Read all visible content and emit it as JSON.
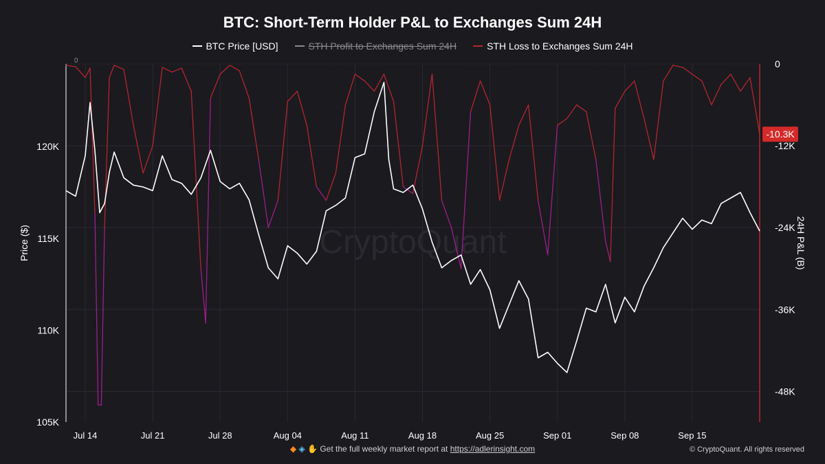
{
  "chart_data": {
    "type": "line",
    "title": "BTC: Short-Term Holder P&L to Exchanges Sum 24H",
    "y_left_label": "Price ($)",
    "y_right_label": "24H P&L (B)",
    "y_left_ticks": [
      "105K",
      "110K",
      "115K",
      "120K"
    ],
    "y_left_range": [
      105000,
      124500
    ],
    "y_right_ticks": [
      "0",
      "-12K",
      "-24K",
      "-36K",
      "-48K"
    ],
    "y_right_range": [
      -52500,
      0
    ],
    "x_ticks": [
      "Jul 14",
      "Jul 21",
      "Jul 28",
      "Aug 04",
      "Aug 11",
      "Aug 18",
      "Aug 25",
      "Sep 01",
      "Sep 08",
      "Sep 15"
    ],
    "x_start": "2025-07-12",
    "x_end": "2025-09-22",
    "left_zero_label": "0",
    "last_value_badge": "-10.3K",
    "watermark": "CryptoQuant",
    "series": [
      {
        "name": "BTC Price [USD]",
        "color": "#ffffff",
        "visible": true,
        "points": [
          [
            "2025-07-12",
            117600
          ],
          [
            "2025-07-13",
            117300
          ],
          [
            "2025-07-14",
            119500
          ],
          [
            "2025-07-14 12:00",
            122400
          ],
          [
            "2025-07-15",
            119800
          ],
          [
            "2025-07-15 12:00",
            116400
          ],
          [
            "2025-07-16",
            116900
          ],
          [
            "2025-07-16 12:00",
            118600
          ],
          [
            "2025-07-17",
            119700
          ],
          [
            "2025-07-18",
            118300
          ],
          [
            "2025-07-19",
            117900
          ],
          [
            "2025-07-20",
            117800
          ],
          [
            "2025-07-21",
            117600
          ],
          [
            "2025-07-22",
            119500
          ],
          [
            "2025-07-23",
            118200
          ],
          [
            "2025-07-24",
            118000
          ],
          [
            "2025-07-25",
            117400
          ],
          [
            "2025-07-26",
            118300
          ],
          [
            "2025-07-27",
            119800
          ],
          [
            "2025-07-28",
            118100
          ],
          [
            "2025-07-29",
            117700
          ],
          [
            "2025-07-30",
            118000
          ],
          [
            "2025-07-31",
            117100
          ],
          [
            "2025-08-01",
            115200
          ],
          [
            "2025-08-02",
            113400
          ],
          [
            "2025-08-03",
            112800
          ],
          [
            "2025-08-04",
            114600
          ],
          [
            "2025-08-05",
            114200
          ],
          [
            "2025-08-06",
            113600
          ],
          [
            "2025-08-07",
            114300
          ],
          [
            "2025-08-08",
            116500
          ],
          [
            "2025-08-09",
            116800
          ],
          [
            "2025-08-10",
            117200
          ],
          [
            "2025-08-11",
            119400
          ],
          [
            "2025-08-12",
            119600
          ],
          [
            "2025-08-13",
            121900
          ],
          [
            "2025-08-14",
            123500
          ],
          [
            "2025-08-14 12:00",
            119300
          ],
          [
            "2025-08-15",
            117700
          ],
          [
            "2025-08-16",
            117500
          ],
          [
            "2025-08-17",
            117900
          ],
          [
            "2025-08-18",
            116600
          ],
          [
            "2025-08-19",
            114800
          ],
          [
            "2025-08-20",
            113400
          ],
          [
            "2025-08-21",
            113800
          ],
          [
            "2025-08-22",
            114100
          ],
          [
            "2025-08-23",
            112500
          ],
          [
            "2025-08-24",
            113300
          ],
          [
            "2025-08-25",
            112200
          ],
          [
            "2025-08-26",
            110100
          ],
          [
            "2025-08-27",
            111400
          ],
          [
            "2025-08-28",
            112700
          ],
          [
            "2025-08-29",
            111700
          ],
          [
            "2025-08-30",
            108500
          ],
          [
            "2025-08-31",
            108800
          ],
          [
            "2025-09-01",
            108200
          ],
          [
            "2025-09-02",
            107700
          ],
          [
            "2025-09-03",
            109400
          ],
          [
            "2025-09-04",
            111200
          ],
          [
            "2025-09-05",
            111000
          ],
          [
            "2025-09-06",
            112500
          ],
          [
            "2025-09-07",
            110400
          ],
          [
            "2025-09-08",
            111800
          ],
          [
            "2025-09-09",
            111000
          ],
          [
            "2025-09-10",
            112400
          ],
          [
            "2025-09-11",
            113400
          ],
          [
            "2025-09-12",
            114500
          ],
          [
            "2025-09-13",
            115300
          ],
          [
            "2025-09-14",
            116100
          ],
          [
            "2025-09-15",
            115500
          ],
          [
            "2025-09-16",
            116000
          ],
          [
            "2025-09-17",
            115800
          ],
          [
            "2025-09-18",
            116900
          ],
          [
            "2025-09-19",
            117200
          ],
          [
            "2025-09-20",
            117500
          ],
          [
            "2025-09-21",
            116400
          ],
          [
            "2025-09-22",
            115400
          ]
        ]
      },
      {
        "name": "STH Profit to Exchanges Sum 24H",
        "color": "#8a8a8e",
        "visible": false,
        "points": []
      },
      {
        "name": "STH Loss to Exchanges Sum 24H",
        "color": "#b3262e",
        "visible": true,
        "points": [
          [
            "2025-07-12",
            -200
          ],
          [
            "2025-07-13",
            -400
          ],
          [
            "2025-07-14",
            -2000
          ],
          [
            "2025-07-14 12:00",
            -600
          ],
          [
            "2025-07-15",
            -22000
          ],
          [
            "2025-07-15 08:00",
            -50000
          ],
          [
            "2025-07-15 16:00",
            -50000
          ],
          [
            "2025-07-16",
            -24000
          ],
          [
            "2025-07-16 12:00",
            -2000
          ],
          [
            "2025-07-17",
            -200
          ],
          [
            "2025-07-18",
            -800
          ],
          [
            "2025-07-19",
            -9000
          ],
          [
            "2025-07-20",
            -16000
          ],
          [
            "2025-07-21",
            -12000
          ],
          [
            "2025-07-22",
            -500
          ],
          [
            "2025-07-23",
            -1200
          ],
          [
            "2025-07-24",
            -600
          ],
          [
            "2025-07-25",
            -4000
          ],
          [
            "2025-07-26",
            -30000
          ],
          [
            "2025-07-26 12:00",
            -38000
          ],
          [
            "2025-07-27",
            -5000
          ],
          [
            "2025-07-28",
            -1500
          ],
          [
            "2025-07-29",
            -200
          ],
          [
            "2025-07-30",
            -1000
          ],
          [
            "2025-07-31",
            -5000
          ],
          [
            "2025-08-01",
            -14000
          ],
          [
            "2025-08-02",
            -24000
          ],
          [
            "2025-08-03",
            -20000
          ],
          [
            "2025-08-04",
            -5500
          ],
          [
            "2025-08-05",
            -4000
          ],
          [
            "2025-08-06",
            -9000
          ],
          [
            "2025-08-07",
            -18000
          ],
          [
            "2025-08-08",
            -20000
          ],
          [
            "2025-08-09",
            -16000
          ],
          [
            "2025-08-10",
            -6000
          ],
          [
            "2025-08-11",
            -1500
          ],
          [
            "2025-08-12",
            -2500
          ],
          [
            "2025-08-13",
            -4000
          ],
          [
            "2025-08-14",
            -1500
          ],
          [
            "2025-08-15",
            -5500
          ],
          [
            "2025-08-16",
            -18000
          ],
          [
            "2025-08-17",
            -19000
          ],
          [
            "2025-08-18",
            -12000
          ],
          [
            "2025-08-19",
            -1500
          ],
          [
            "2025-08-20",
            -20000
          ],
          [
            "2025-08-21",
            -24000
          ],
          [
            "2025-08-22",
            -30000
          ],
          [
            "2025-08-23",
            -7000
          ],
          [
            "2025-08-24",
            -2500
          ],
          [
            "2025-08-25",
            -6000
          ],
          [
            "2025-08-26",
            -20000
          ],
          [
            "2025-08-27",
            -14000
          ],
          [
            "2025-08-28",
            -9000
          ],
          [
            "2025-08-29",
            -6000
          ],
          [
            "2025-08-30",
            -20000
          ],
          [
            "2025-08-31",
            -28000
          ],
          [
            "2025-09-01",
            -9000
          ],
          [
            "2025-09-02",
            -8000
          ],
          [
            "2025-09-03",
            -6000
          ],
          [
            "2025-09-04",
            -7000
          ],
          [
            "2025-09-05",
            -14000
          ],
          [
            "2025-09-06",
            -26000
          ],
          [
            "2025-09-06 12:00",
            -29000
          ],
          [
            "2025-09-07",
            -6500
          ],
          [
            "2025-09-08",
            -4000
          ],
          [
            "2025-09-09",
            -2500
          ],
          [
            "2025-09-10",
            -8000
          ],
          [
            "2025-09-11",
            -14000
          ],
          [
            "2025-09-12",
            -2500
          ],
          [
            "2025-09-13",
            -200
          ],
          [
            "2025-09-14",
            -500
          ],
          [
            "2025-09-15",
            -1500
          ],
          [
            "2025-09-16",
            -2500
          ],
          [
            "2025-09-17",
            -6000
          ],
          [
            "2025-09-18",
            -3000
          ],
          [
            "2025-09-19",
            -1500
          ],
          [
            "2025-09-20",
            -4000
          ],
          [
            "2025-09-21",
            -2000
          ],
          [
            "2025-09-22",
            -10300
          ]
        ]
      }
    ]
  },
  "footer": {
    "text": "Get the full weekly market report at",
    "link": "https://adlerinsight.com",
    "copyright": "© CryptoQuant. All rights reserved",
    "icons": [
      "orange-diamond-icon",
      "gem-icon",
      "raised-hands-icon"
    ]
  },
  "colors": {
    "background": "#1b1a1f",
    "price_line": "#ffffff",
    "loss_line": "#b3262e",
    "loss_line_deep": "#9b1f8c",
    "badge_bg": "#d42a2a"
  }
}
